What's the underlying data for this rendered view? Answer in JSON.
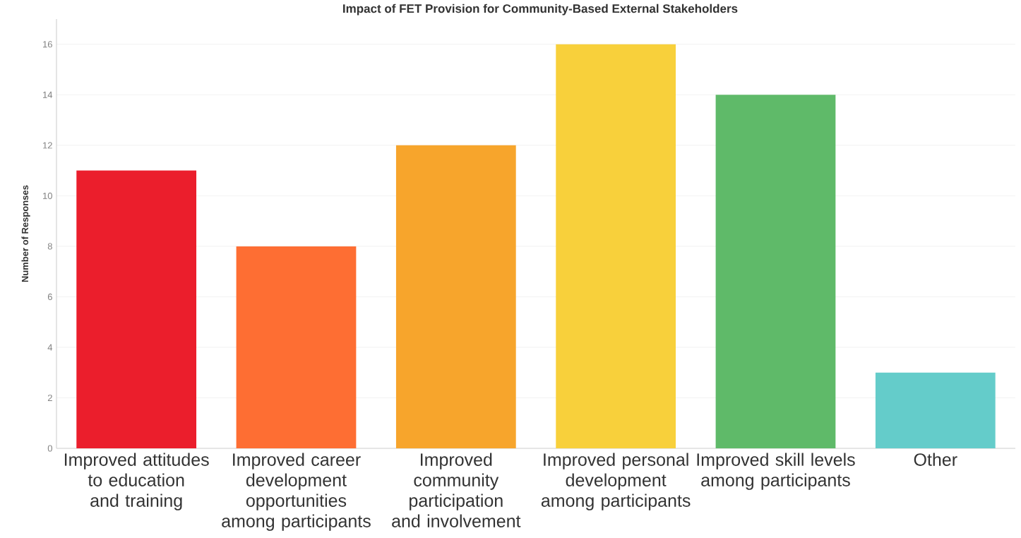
{
  "chart_data": {
    "type": "bar",
    "title": "Impact of FET Provision for Community-Based External Stakeholders",
    "ylabel": "Number of Responses",
    "categories": [
      "Improved attitudes to education and training",
      "Improved career development opportunities among participants",
      "Improved community participation and involvement",
      "Improved personal development among participants",
      "Improved skill levels among participants",
      "Other"
    ],
    "values": [
      11,
      8,
      12,
      16,
      14,
      3
    ],
    "colors": [
      "#eb1e2c",
      "#fe6e33",
      "#f7a52c",
      "#f8d03b",
      "#5fba69",
      "#64ccca"
    ],
    "ylim": [
      0,
      17
    ],
    "yticks": [
      0,
      2,
      4,
      6,
      8,
      10,
      12,
      14,
      16
    ],
    "grid": "y"
  }
}
